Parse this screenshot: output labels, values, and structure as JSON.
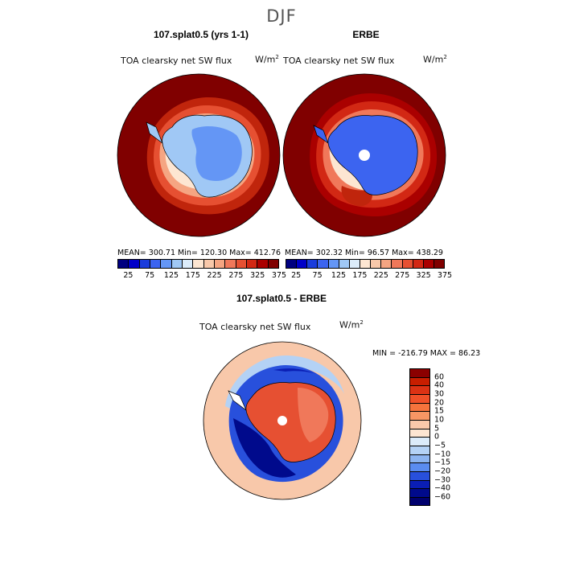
{
  "season": "DJF",
  "panels": [
    {
      "title": "107.splat0.5 (yrs 1-1)",
      "subtitle": "TOA clearsky net SW flux",
      "units": "W/m",
      "stats": "MEAN= 300.71   Min= 120.30   Max= 412.76"
    },
    {
      "title": "ERBE",
      "subtitle": "TOA clearsky net SW flux",
      "units": "W/m",
      "stats": "MEAN= 302.32   Min=  96.57   Max= 438.29"
    }
  ],
  "diff_panel": {
    "title": "107.splat0.5 - ERBE",
    "subtitle": "TOA clearsky net SW flux",
    "units": "W/m",
    "minmax": "MIN = -216.79  MAX =  86.23"
  },
  "colorbar_top": {
    "labels": [
      "25",
      "75",
      "125",
      "175",
      "225",
      "275",
      "325",
      "375"
    ],
    "colors": [
      "#000080",
      "#0000c8",
      "#1a3cdc",
      "#3c64f0",
      "#6496f5",
      "#a0c8f5",
      "#dcecfa",
      "#fde6d2",
      "#f8c8aa",
      "#f5a582",
      "#f0785a",
      "#e65032",
      "#d22814",
      "#aa0000",
      "#800000"
    ]
  },
  "colorbar_diff": {
    "labels": [
      "60",
      "40",
      "30",
      "20",
      "15",
      "10",
      "5",
      "0",
      "−5",
      "−10",
      "−15",
      "−20",
      "−30",
      "−40",
      "−60"
    ],
    "colors": [
      "#8b0000",
      "#c81e00",
      "#dc3214",
      "#f05028",
      "#f5733c",
      "#f89664",
      "#fac8aa",
      "#fde6d2",
      "#dcecfa",
      "#b4d2f5",
      "#8cb4f0",
      "#5a8cf0",
      "#2850dc",
      "#0a1eb4",
      "#000a8c",
      "#00006e"
    ]
  }
}
